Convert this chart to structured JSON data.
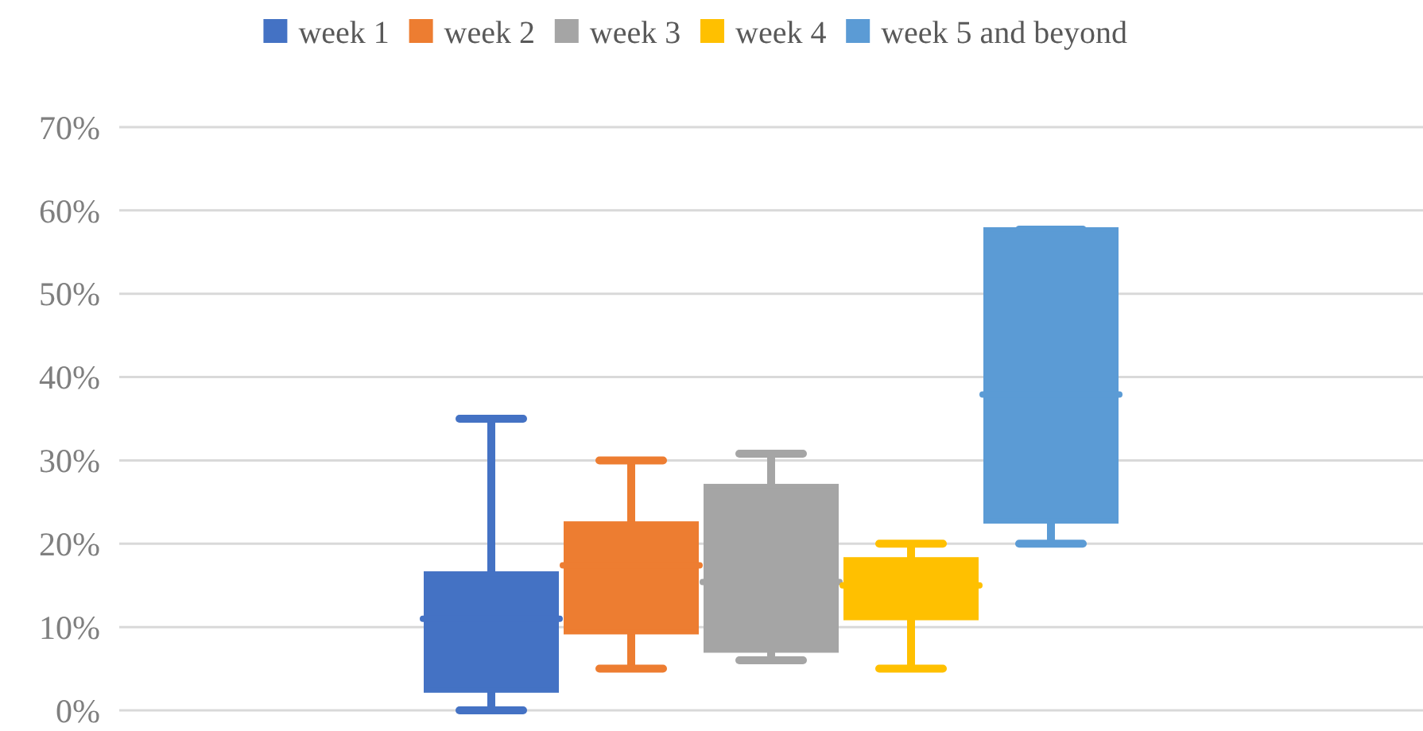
{
  "chart_data": {
    "type": "box",
    "categories": [
      null
    ],
    "series": [
      {
        "name": "week 1",
        "color": "#4472c4",
        "boxes": [
          {
            "low": 0,
            "q1": 2.4,
            "median": 11,
            "q3": 16.4,
            "high": 35
          }
        ]
      },
      {
        "name": "week 2",
        "color": "#ed7d31",
        "boxes": [
          {
            "low": 5,
            "q1": 9.4,
            "median": 17.4,
            "q3": 22.4,
            "high": 30
          }
        ]
      },
      {
        "name": "week 3",
        "color": "#a5a5a5",
        "boxes": [
          {
            "low": 6,
            "q1": 7.2,
            "median": 15.4,
            "q3": 26.9,
            "high": 30.8
          }
        ]
      },
      {
        "name": "week 4",
        "color": "#ffc000",
        "boxes": [
          {
            "low": 5,
            "q1": 11.1,
            "median": 15,
            "q3": 18.1,
            "high": 20
          }
        ]
      },
      {
        "name": "week 5 and beyond",
        "color": "#5b9bd5",
        "boxes": [
          {
            "low": 20,
            "q1": 22.7,
            "median": 37.9,
            "q3": 57.7,
            "high": 57.7
          }
        ]
      }
    ],
    "ylim": [
      0,
      70
    ],
    "yticks": [
      {
        "value": 0,
        "label": "0%"
      },
      {
        "value": 10,
        "label": "10%"
      },
      {
        "value": 20,
        "label": "20%"
      },
      {
        "value": 30,
        "label": "30%"
      },
      {
        "value": 40,
        "label": "40%"
      },
      {
        "value": 50,
        "label": "50%"
      },
      {
        "value": 60,
        "label": "60%"
      },
      {
        "value": 70,
        "label": "70%"
      }
    ],
    "grid": "y",
    "legend": "top"
  }
}
